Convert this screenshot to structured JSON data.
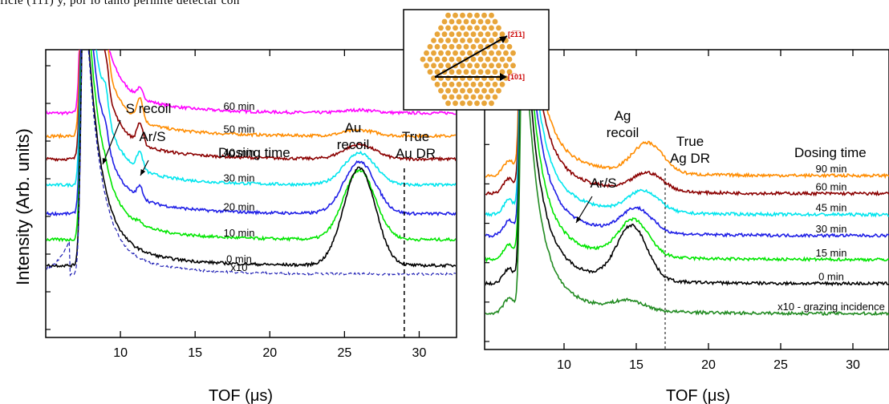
{
  "page_text": {
    "top_fragment": "ficie (111) y, por lo tanto permite detectar con"
  },
  "inset": {
    "dir_a": "[2̅1̅1]",
    "dir_b": "[1̅01]",
    "dot_color": "#E8A53A",
    "arrow_color": "#000000",
    "label_color": "#CC0000"
  },
  "chart_data": [
    {
      "type": "line",
      "panel": "Au",
      "xlabel": "TOF (μs)",
      "ylabel": "Intensity (Arb. units)",
      "xlim": [
        5,
        32.5
      ],
      "xticks": [
        10,
        15,
        20,
        25,
        30
      ],
      "legend_title": "Dosing time",
      "annotations": [
        {
          "text": "S recoil",
          "x": 9
        },
        {
          "text": "Ar/S",
          "x": 11.4
        },
        {
          "text": "Au\nrecoil",
          "x": 26
        },
        {
          "text": "True\nAu DR",
          "x": 29
        }
      ],
      "marker_line_x": 29,
      "series": [
        {
          "name": "60 min",
          "color": "#FF00FF",
          "offset": 0.78,
          "peak_x": 26,
          "peak_h": 0.01,
          "side_peaks": [
            [
              9.0,
              0.0
            ],
            [
              11.3,
              0.03
            ]
          ]
        },
        {
          "name": "50 min",
          "color": "#FF8C00",
          "offset": 0.7,
          "peak_x": 26,
          "peak_h": 0.02,
          "side_peaks": [
            [
              9.0,
              0.12
            ],
            [
              11.3,
              0.08
            ]
          ]
        },
        {
          "name": "40 min",
          "color": "#8B0000",
          "offset": 0.62,
          "peak_x": 26,
          "peak_h": 0.05,
          "side_peaks": [
            [
              9.0,
              0.1
            ],
            [
              11.3,
              0.07
            ]
          ]
        },
        {
          "name": "30 min",
          "color": "#00E5EE",
          "offset": 0.53,
          "peak_x": 26,
          "peak_h": 0.11,
          "side_peaks": [
            [
              9.0,
              0.08
            ],
            [
              11.3,
              0.06
            ]
          ]
        },
        {
          "name": "20 min",
          "color": "#1E1EE6",
          "offset": 0.43,
          "peak_x": 26,
          "peak_h": 0.18,
          "side_peaks": [
            [
              9.0,
              0.05
            ],
            [
              11.3,
              0.04
            ]
          ]
        },
        {
          "name": "10 min",
          "color": "#00E600",
          "offset": 0.34,
          "peak_x": 26,
          "peak_h": 0.24,
          "side_peaks": [
            [
              9.0,
              0.02
            ],
            [
              11.3,
              0.01
            ]
          ]
        },
        {
          "name": "0 min",
          "color": "#000000",
          "offset": 0.25,
          "peak_x": 26,
          "peak_h": 0.34,
          "side_peaks": []
        },
        {
          "name": "x10",
          "color": "#1E1EB4",
          "offset": 0.22,
          "peak_x": 26,
          "peak_h": 0.0,
          "side_peaks": [],
          "dashed": true
        }
      ]
    },
    {
      "type": "line",
      "panel": "Ag",
      "xlabel": "TOF (μs)",
      "xlim": [
        4.5,
        32.5
      ],
      "xticks": [
        10,
        15,
        20,
        25,
        30
      ],
      "legend_title": "Dosing time",
      "annotations": [
        {
          "text": "Ag\nrecoil",
          "x": 15.2
        },
        {
          "text": "True\nAg DR",
          "x": 17
        },
        {
          "text": "Ar/S",
          "x": 11.8
        }
      ],
      "marker_line_x": 17,
      "series": [
        {
          "name": "90 min",
          "color": "#FF8C00",
          "offset": 0.58,
          "peak_x": 15.8,
          "peak_h": 0.1
        },
        {
          "name": "60 min",
          "color": "#8B0000",
          "offset": 0.52,
          "peak_x": 15.8,
          "peak_h": 0.06
        },
        {
          "name": "45 min",
          "color": "#00E5EE",
          "offset": 0.45,
          "peak_x": 15.5,
          "peak_h": 0.07
        },
        {
          "name": "30 min",
          "color": "#1E1EE6",
          "offset": 0.38,
          "peak_x": 15.0,
          "peak_h": 0.08
        },
        {
          "name": "15 min",
          "color": "#00E600",
          "offset": 0.3,
          "peak_x": 14.8,
          "peak_h": 0.12
        },
        {
          "name": "0 min",
          "color": "#000000",
          "offset": 0.22,
          "peak_x": 14.7,
          "peak_h": 0.18
        },
        {
          "name": "x10 - grazing incidence",
          "color": "#228B22",
          "offset": 0.12,
          "peak_x": 14.5,
          "peak_h": 0.03
        }
      ]
    }
  ]
}
